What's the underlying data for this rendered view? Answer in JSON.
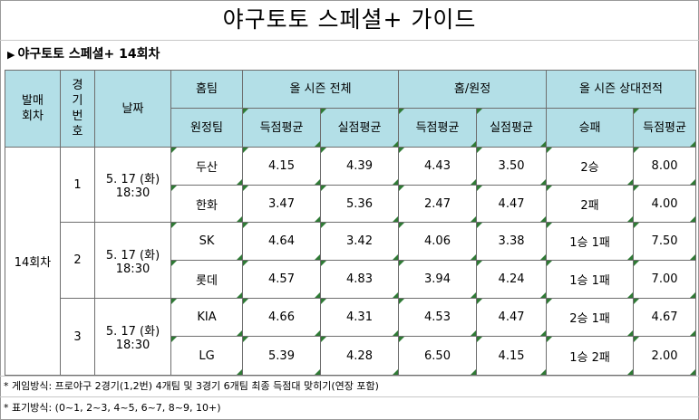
{
  "title": "야구토토 스페셜+ 가이드",
  "subtitle": "야구토토 스페셜+ 14회차",
  "headers": {
    "round": "발매\n회차",
    "game_no": "경\n기\n번\n호",
    "date": "날짜",
    "home_team": "홈팀",
    "away_team": "원정팀",
    "season_total": "올 시즌 전체",
    "home_away": "홈/원정",
    "season_h2h": "올 시즌 상대전적",
    "avg_scored": "득점평균",
    "avg_allowed": "실점평균",
    "win_loss": "승패"
  },
  "round_label": "14회차",
  "games": [
    {
      "no": "1",
      "date": "5. 17 (화)",
      "time": "18:30",
      "teams": [
        {
          "name": "두산",
          "season_scored": "4.15",
          "season_allowed": "4.39",
          "ha_scored": "4.43",
          "ha_allowed": "3.50",
          "record": "2승",
          "h2h_scored": "8.00"
        },
        {
          "name": "한화",
          "season_scored": "3.47",
          "season_allowed": "5.36",
          "ha_scored": "2.47",
          "ha_allowed": "4.47",
          "record": "2패",
          "h2h_scored": "4.00"
        }
      ]
    },
    {
      "no": "2",
      "date": "5. 17 (화)",
      "time": "18:30",
      "teams": [
        {
          "name": "SK",
          "season_scored": "4.64",
          "season_allowed": "3.42",
          "ha_scored": "4.06",
          "ha_allowed": "3.38",
          "record": "1승 1패",
          "h2h_scored": "7.50"
        },
        {
          "name": "롯데",
          "season_scored": "4.57",
          "season_allowed": "4.83",
          "ha_scored": "3.94",
          "ha_allowed": "4.24",
          "record": "1승 1패",
          "h2h_scored": "7.00"
        }
      ]
    },
    {
      "no": "3",
      "date": "5. 17 (화)",
      "time": "18:30",
      "teams": [
        {
          "name": "KIA",
          "season_scored": "4.66",
          "season_allowed": "4.31",
          "ha_scored": "4.53",
          "ha_allowed": "4.47",
          "record": "2승 1패",
          "h2h_scored": "4.67"
        },
        {
          "name": "LG",
          "season_scored": "5.39",
          "season_allowed": "4.28",
          "ha_scored": "6.50",
          "ha_allowed": "4.15",
          "record": "1승 2패",
          "h2h_scored": "2.00"
        }
      ]
    }
  ],
  "footnotes": [
    "* 게임방식: 프로야구 2경기(1,2번) 4개팀 및 3경기 6개팀 최종 득점대 맞히기(연장 포함)",
    "* 표기방식: (0~1, 2~3, 4~5, 6~7, 8~9, 10+)"
  ],
  "colors": {
    "header_bg": "#b3dfe7",
    "corner_mark": "#2f7a35"
  }
}
